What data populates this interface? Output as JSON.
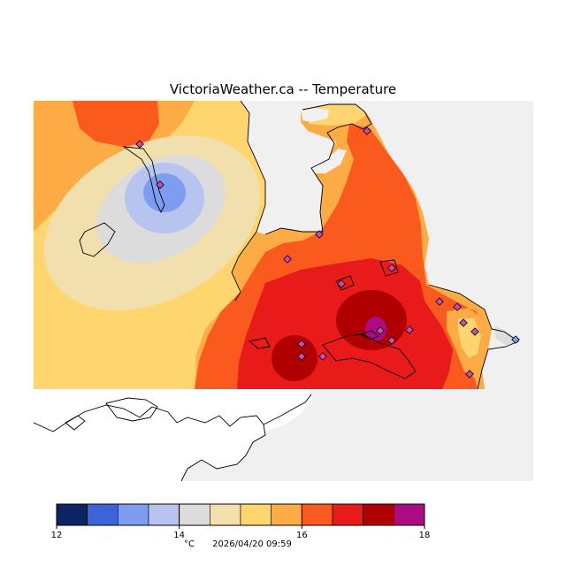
{
  "title": "VictoriaWeather.ca -- Temperature",
  "map": {
    "land_color": "#ffffff",
    "water_color": "#f0f0f0",
    "outline_color": "#000000",
    "station_color": "#c44fb0"
  },
  "legend": {
    "unit": "°C",
    "timestamp": "2026/04/20 09:59",
    "tick_labels": [
      "12",
      "14",
      "16",
      "18"
    ],
    "min": 12,
    "max": 18,
    "step": 0.5,
    "colors": [
      "#0c2462",
      "#3c64d8",
      "#7f9df0",
      "#b8c4f0",
      "#dcdcdc",
      "#f2dfae",
      "#fed56e",
      "#fdab45",
      "#fb5a1e",
      "#e81a1a",
      "#b00000",
      "#ac0b82"
    ]
  }
}
